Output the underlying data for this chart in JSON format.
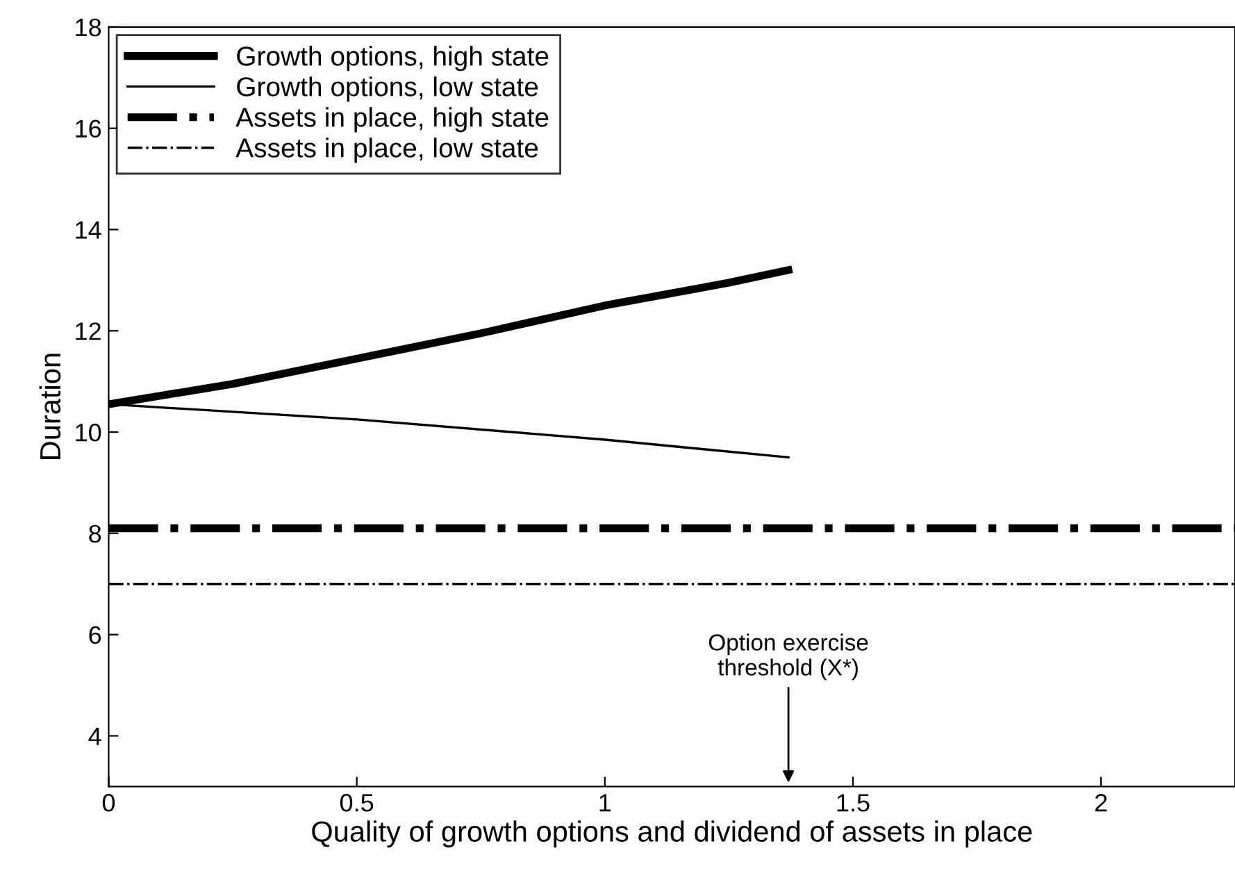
{
  "chart_data": {
    "type": "line",
    "xlabel": "Quality of growth options and dividend of assets in place",
    "ylabel": "Duration",
    "xlim": [
      0,
      2.27
    ],
    "ylim": [
      3,
      18
    ],
    "xticks": [
      0,
      0.5,
      1,
      1.5,
      2
    ],
    "yticks": [
      4,
      6,
      8,
      10,
      12,
      14,
      16,
      18
    ],
    "grid": false,
    "legend": "top left",
    "marker": "none",
    "series": [
      {
        "name": "Growth options, high state",
        "color": "#000000",
        "line_style": "solid",
        "x": [
          0,
          0.25,
          0.5,
          0.75,
          1.0,
          1.25,
          1.37
        ],
        "values": [
          10.55,
          10.95,
          11.45,
          11.95,
          12.5,
          12.95,
          13.2
        ]
      },
      {
        "name": "Growth options, low state",
        "color": "#000000",
        "line_style": "solid",
        "x": [
          0,
          0.5,
          1.0,
          1.37
        ],
        "values": [
          10.55,
          10.25,
          9.85,
          9.5
        ]
      },
      {
        "name": "Assets in place, high state",
        "color": "#000000",
        "line_style": "dashdot",
        "x": [
          0,
          2.27
        ],
        "values": [
          8.1,
          8.1
        ]
      },
      {
        "name": "Assets in place, low state",
        "color": "#000000",
        "line_style": "dashdot",
        "x": [
          0,
          2.27
        ],
        "values": [
          7.0,
          7.0
        ]
      }
    ],
    "annotations": [
      "Option exercise\nthreshold (X*)"
    ]
  }
}
